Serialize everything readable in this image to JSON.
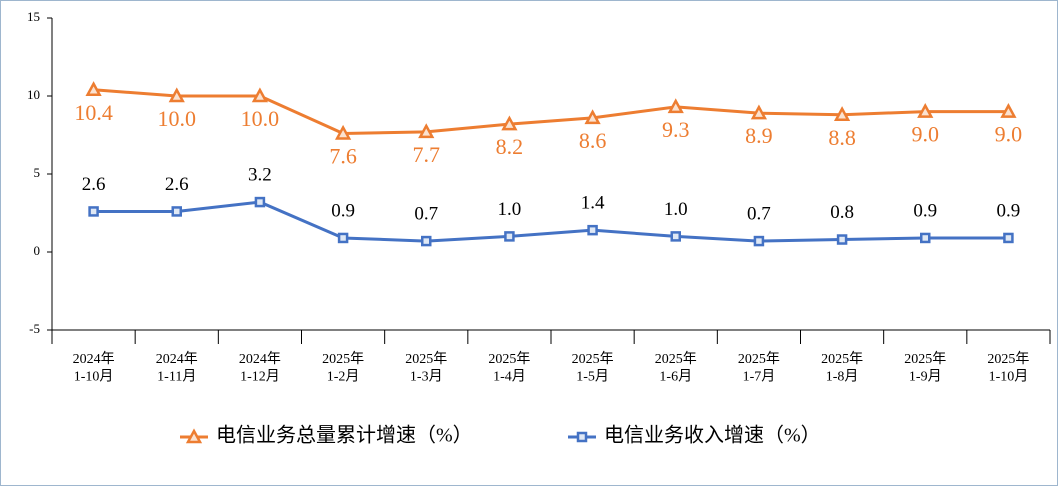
{
  "chart_data": {
    "type": "line",
    "categories": [
      "2024年\n1-10月",
      "2024年\n1-11月",
      "2024年\n1-12月",
      "2025年\n1-2月",
      "2025年\n1-3月",
      "2025年\n1-4月",
      "2025年\n1-5月",
      "2025年\n1-6月",
      "2025年\n1-7月",
      "2025年\n1-8月",
      "2025年\n1-9月",
      "2025年\n1-10月"
    ],
    "series": [
      {
        "name": "电信业务总量累计增速（%）",
        "color": "#ed7d31",
        "marker": "triangle",
        "values": [
          10.4,
          10.0,
          10.0,
          7.6,
          7.7,
          8.2,
          8.6,
          9.3,
          8.9,
          8.8,
          9.0,
          9.0
        ],
        "value_labels": [
          "10.4",
          "10.0",
          "10.0",
          "7.6",
          "7.7",
          "8.2",
          "8.6",
          "9.3",
          "8.9",
          "8.8",
          "9.0",
          "9.0"
        ]
      },
      {
        "name": "电信业务收入增速（%）",
        "color": "#4472c4",
        "marker": "square",
        "values": [
          2.6,
          2.6,
          3.2,
          0.9,
          0.7,
          1.0,
          1.4,
          1.0,
          0.7,
          0.8,
          0.9,
          0.9
        ],
        "value_labels": [
          "2.6",
          "2.6",
          "3.2",
          "0.9",
          "0.7",
          "1.0",
          "1.4",
          "1.0",
          "0.7",
          "0.8",
          "0.9",
          "0.9"
        ]
      }
    ],
    "ylim": [
      -5,
      15
    ],
    "yticks": [
      -5,
      0,
      5,
      10,
      15
    ],
    "grid": false,
    "legend": "bottom"
  }
}
